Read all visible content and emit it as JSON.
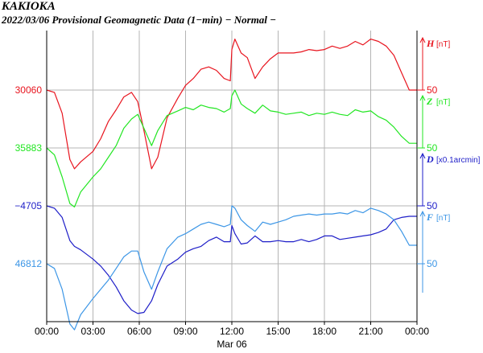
{
  "station": "KAKIOKA",
  "subtitle": "2022/03/06  Provisional Geomagnetic Data (1−min)  − Normal −",
  "chart_data": {
    "type": "line",
    "title": "KAKIOKA",
    "subtitle": "2022/03/06  Provisional Geomagnetic Data (1−min)  − Normal −",
    "xlabel": "Mar 06",
    "x_tick_labels": [
      "00:00",
      "03:00",
      "06:00",
      "09:00",
      "12:00",
      "15:00",
      "18:00",
      "21:00",
      "00:00"
    ],
    "xlim": [
      0,
      24
    ],
    "grid": true,
    "series": [
      {
        "name": "H",
        "unit": "[nT]",
        "color": "#e8141e",
        "base_label": "30060",
        "scale_label": "50",
        "scale_step": 50,
        "x": [
          0,
          0.5,
          1,
          1.5,
          1.8,
          2.2,
          3,
          3.5,
          4,
          4.5,
          5,
          5.5,
          5.9,
          6.3,
          6.8,
          7.2,
          7.8,
          8.5,
          9,
          9.5,
          10,
          10.5,
          11,
          11.5,
          11.9,
          12,
          12.2,
          12.6,
          13,
          13.5,
          14,
          14.5,
          15,
          15.5,
          16,
          16.5,
          17,
          17.5,
          18,
          18.5,
          19,
          19.5,
          20,
          20.5,
          21,
          21.5,
          22,
          22.5,
          23,
          23.5,
          24
        ],
        "values": [
          30060,
          30058,
          30040,
          30000,
          29992,
          29998,
          30007,
          30018,
          30033,
          30043,
          30054,
          30058,
          30050,
          30025,
          29992,
          30002,
          30036,
          30053,
          30064,
          30070,
          30078,
          30080,
          30077,
          30070,
          30068,
          30095,
          30104,
          30092,
          30088,
          30070,
          30080,
          30087,
          30092,
          30092,
          30092,
          30093,
          30095,
          30094,
          30095,
          30098,
          30096,
          30098,
          30102,
          30099,
          30104,
          30102,
          30098,
          30090,
          30075,
          30060,
          30060
        ]
      },
      {
        "name": "Z",
        "unit": "[nT]",
        "color": "#22e622",
        "base_label": "35883",
        "scale_label": "50",
        "scale_step": 50,
        "x": [
          0,
          0.5,
          1,
          1.5,
          1.8,
          2.2,
          3,
          3.5,
          4,
          4.5,
          5,
          5.5,
          5.9,
          6.3,
          6.8,
          7.2,
          7.8,
          8.5,
          9,
          9.5,
          10,
          10.5,
          11,
          11.5,
          11.9,
          12,
          12.2,
          12.6,
          13,
          13.5,
          14,
          14.5,
          15,
          15.5,
          16,
          16.5,
          17,
          17.5,
          18,
          18.5,
          19,
          19.5,
          20,
          20.5,
          21,
          21.5,
          22,
          22.5,
          23,
          23.5,
          24
        ],
        "values": [
          35883,
          35877,
          35858,
          35835,
          35832,
          35845,
          35858,
          35865,
          35875,
          35885,
          35900,
          35908,
          35912,
          35900,
          35885,
          35898,
          35911,
          35915,
          35918,
          35916,
          35920,
          35918,
          35917,
          35914,
          35917,
          35928,
          35933,
          35921,
          35917,
          35913,
          35920,
          35915,
          35914,
          35912,
          35913,
          35914,
          35911,
          35913,
          35912,
          35914,
          35912,
          35911,
          35916,
          35914,
          35915,
          35910,
          35907,
          35901,
          35893,
          35887,
          35887
        ]
      },
      {
        "name": "D",
        "unit": "[x0.1arcmin]",
        "color": "#1e1ec8",
        "base_label": "−4705",
        "scale_label": "50",
        "scale_step": 50,
        "x": [
          0,
          0.5,
          1,
          1.5,
          1.8,
          2.2,
          3,
          3.5,
          4,
          4.5,
          5,
          5.5,
          5.9,
          6.3,
          6.8,
          7.2,
          7.8,
          8.5,
          9,
          9.5,
          10,
          10.5,
          11,
          11.5,
          11.9,
          12,
          12.2,
          12.6,
          13,
          13.5,
          14,
          14.5,
          15,
          15.5,
          16,
          16.5,
          17,
          17.5,
          18,
          18.5,
          19,
          19.5,
          20,
          20.5,
          21,
          21.5,
          22,
          22.5,
          23,
          23.5,
          24
        ],
        "values": [
          -4670,
          -4672,
          -4680,
          -4700,
          -4705,
          -4708,
          -4716,
          -4722,
          -4730,
          -4740,
          -4752,
          -4760,
          -4763,
          -4762,
          -4752,
          -4738,
          -4722,
          -4716,
          -4710,
          -4707,
          -4705,
          -4700,
          -4697,
          -4701,
          -4701,
          -4687,
          -4694,
          -4703,
          -4702,
          -4696,
          -4701,
          -4701,
          -4700,
          -4701,
          -4701,
          -4699,
          -4701,
          -4699,
          -4696,
          -4696,
          -4699,
          -4698,
          -4697,
          -4696,
          -4695,
          -4693,
          -4690,
          -4682,
          -4680,
          -4679,
          -4679
        ]
      },
      {
        "name": "F",
        "unit": "[nT]",
        "color": "#3c96e6",
        "base_label": "46812",
        "scale_label": "50",
        "scale_step": 50,
        "x": [
          0,
          0.5,
          1,
          1.5,
          1.8,
          2.2,
          3,
          3.5,
          4,
          4.5,
          5,
          5.5,
          5.9,
          6.3,
          6.8,
          7.2,
          7.8,
          8.5,
          9,
          9.5,
          10,
          10.5,
          11,
          11.5,
          11.9,
          12,
          12.2,
          12.6,
          13,
          13.5,
          14,
          14.5,
          15,
          15.5,
          16,
          16.5,
          17,
          17.5,
          18,
          18.5,
          19,
          19.5,
          20,
          20.5,
          21,
          21.5,
          22,
          22.5,
          23,
          23.5,
          24
        ],
        "values": [
          46812,
          46808,
          46790,
          46760,
          46755,
          46768,
          46782,
          46790,
          46798,
          46808,
          46818,
          46823,
          46823,
          46805,
          46790,
          46805,
          46825,
          46835,
          46838,
          46842,
          46846,
          46848,
          46846,
          46844,
          46846,
          46862,
          46860,
          46850,
          46845,
          46840,
          46848,
          46846,
          46848,
          46850,
          46853,
          46854,
          46855,
          46854,
          46855,
          46855,
          46856,
          46855,
          46858,
          46856,
          46860,
          46858,
          46855,
          46850,
          46840,
          46828,
          46828
        ]
      }
    ]
  }
}
